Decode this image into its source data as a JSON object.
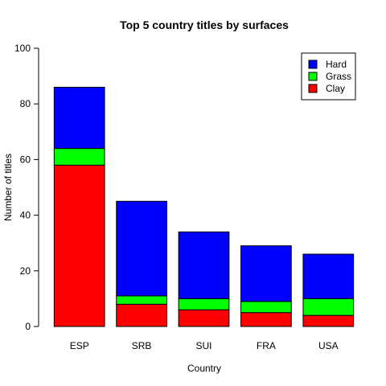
{
  "chart_data": {
    "type": "bar",
    "stacked": true,
    "title": "Top 5 country titles by surfaces",
    "xlabel": "Country",
    "ylabel": "Number of titles",
    "ylim": [
      0,
      100
    ],
    "yticks": [
      0,
      20,
      40,
      60,
      80,
      100
    ],
    "categories": [
      "ESP",
      "SRB",
      "SUI",
      "FRA",
      "USA"
    ],
    "series": [
      {
        "name": "Clay",
        "color": "#ff0000",
        "values": [
          58,
          8,
          6,
          5,
          4
        ]
      },
      {
        "name": "Grass",
        "color": "#00ff00",
        "values": [
          6,
          3,
          4,
          4,
          6
        ]
      },
      {
        "name": "Hard",
        "color": "#0000ff",
        "values": [
          22,
          34,
          24,
          20,
          16
        ]
      }
    ],
    "legend": {
      "placement": "top-right",
      "order": [
        "Hard",
        "Grass",
        "Clay"
      ]
    },
    "grid": false
  }
}
